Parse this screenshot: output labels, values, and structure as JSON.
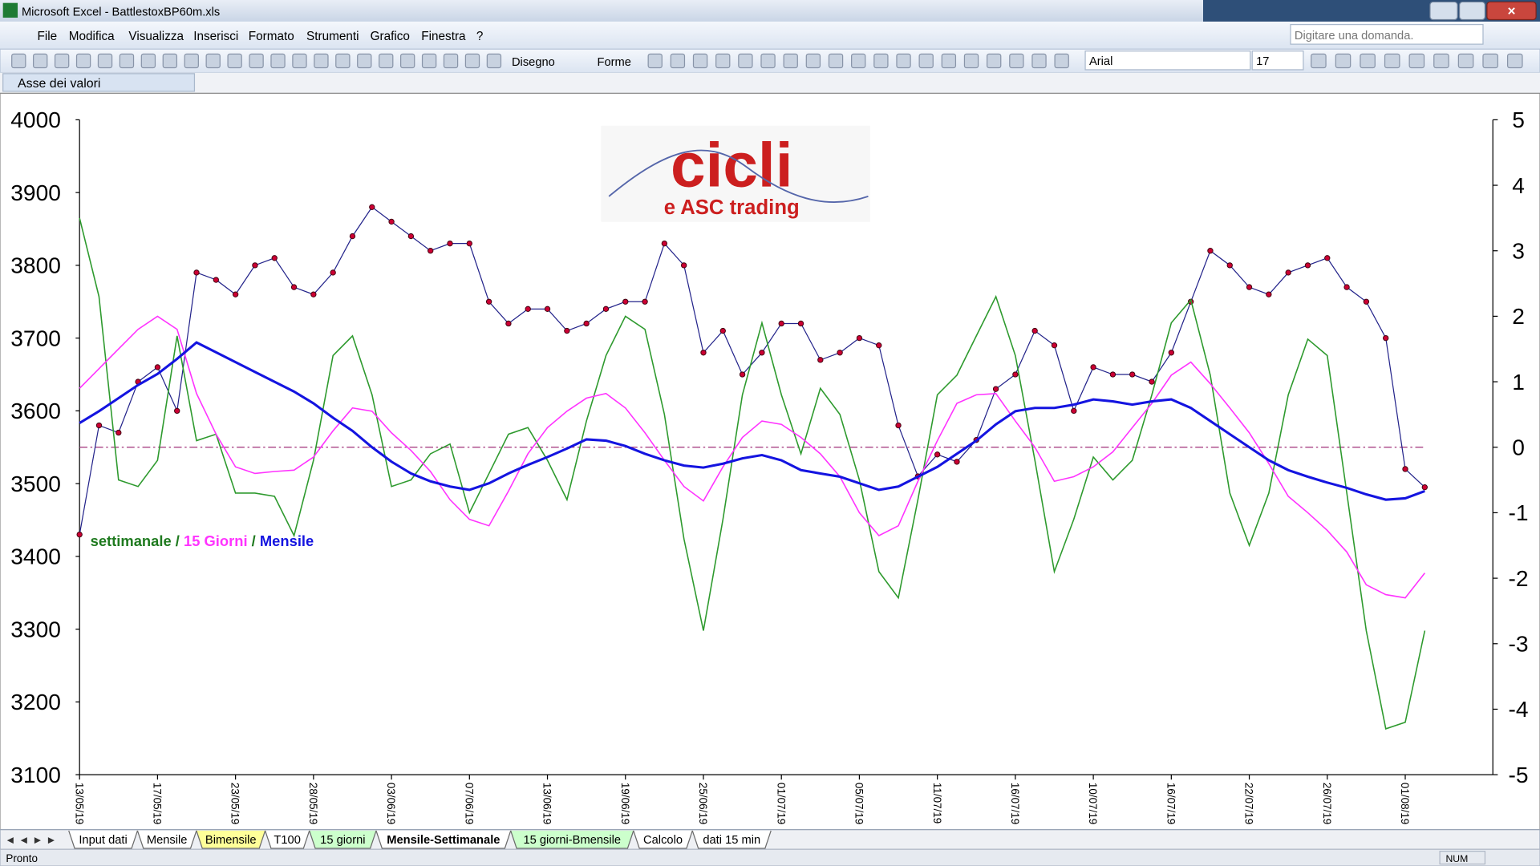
{
  "window": {
    "title": "Microsoft Excel - BattlestoxBP60m.xls"
  },
  "menu": [
    "File",
    "Modifica",
    "Visualizza",
    "Inserisci",
    "Formato",
    "Strumenti",
    "Grafico",
    "Finestra",
    "?"
  ],
  "help_box": "Digitare una domanda.",
  "toolbar": {
    "draw": "Disegno",
    "shapes": "Forme",
    "font": "Arial",
    "size": "17"
  },
  "name_box": "Asse dei valori",
  "chart_data": {
    "type": "line",
    "logo": {
      "line1": "cicli",
      "line2": "e ASC trading"
    },
    "legend_separator": " / ",
    "categories": [
      "13/05/19",
      null,
      null,
      null,
      "17/05/19",
      null,
      null,
      null,
      "23/05/19",
      null,
      null,
      null,
      "28/05/19",
      null,
      null,
      null,
      "03/06/19",
      null,
      null,
      null,
      "07/06/19",
      null,
      null,
      null,
      "13/06/19",
      null,
      null,
      null,
      "19/06/19",
      null,
      null,
      null,
      "25/06/19",
      null,
      null,
      null,
      "01/07/19",
      null,
      null,
      null,
      "05/07/19",
      null,
      null,
      null,
      "11/07/19",
      null,
      null,
      null,
      "16/07/19",
      null,
      null,
      null,
      "10/07/19",
      null,
      null,
      null,
      "16/07/19",
      null,
      null,
      null,
      "22/07/19",
      null,
      null,
      null,
      "26/07/19",
      null,
      null,
      null,
      "01/08/19",
      null
    ],
    "ylim": [
      3100,
      4000
    ],
    "yticks": [
      3100,
      3200,
      3300,
      3400,
      3500,
      3600,
      3700,
      3800,
      3900,
      4000
    ],
    "y2lim": [
      -5,
      5
    ],
    "y2ticks": [
      -5,
      -4,
      -3,
      -2,
      -1,
      0,
      1,
      2,
      3,
      4,
      5
    ],
    "hline": {
      "axis": "y2",
      "value": 0,
      "color": "#a0307a"
    },
    "series": [
      {
        "axis": "y",
        "color": "#23238a",
        "marker_color": "#cc0033",
        "values": [
          3430,
          3580,
          3570,
          3640,
          3660,
          3600,
          3790,
          3780,
          3760,
          3800,
          3810,
          3770,
          3760,
          3790,
          3840,
          3880,
          3860,
          3840,
          3820,
          3830,
          3830,
          3750,
          3720,
          3740,
          3740,
          3710,
          3720,
          3740,
          3750,
          3750,
          3830,
          3800,
          3680,
          3710,
          3650,
          3680,
          3720,
          3720,
          3670,
          3680,
          3700,
          3690,
          3580,
          3510,
          3540,
          3530,
          3560,
          3630,
          3650,
          3710,
          3690,
          3600,
          3660,
          3650,
          3650,
          3640,
          3680,
          3750,
          3820,
          3800,
          3770,
          3760,
          3790,
          3800,
          3810,
          3770,
          3750,
          3700,
          3520,
          3495
        ]
      },
      {
        "name": "settimanale",
        "axis": "y2",
        "color": "#2e9a2e",
        "legend_color": "#1f7a1f",
        "values": [
          3.5,
          2.3,
          -0.5,
          -0.6,
          -0.2,
          1.7,
          0.1,
          0.2,
          -0.7,
          -0.7,
          -0.75,
          -1.35,
          -0.2,
          1.4,
          1.7,
          0.8,
          -0.6,
          -0.5,
          -0.1,
          0.05,
          -1.0,
          -0.4,
          0.2,
          0.3,
          -0.2,
          -0.8,
          0.4,
          1.4,
          2.0,
          1.8,
          0.5,
          -1.4,
          -2.8,
          -1.1,
          0.8,
          1.9,
          0.8,
          -0.1,
          0.9,
          0.5,
          -0.5,
          -1.9,
          -2.3,
          -0.8,
          0.8,
          1.1,
          1.7,
          2.3,
          1.4,
          -0.2,
          -1.9,
          -1.1,
          -0.15,
          -0.5,
          -0.2,
          0.8,
          1.9,
          2.25,
          1.1,
          -0.7,
          -1.5,
          -0.7,
          0.8,
          1.65,
          1.4,
          -0.7,
          -2.8,
          -4.3,
          -4.2,
          -2.8
        ]
      },
      {
        "name": "15 Giorni",
        "axis": "y2",
        "color": "#ff33ff",
        "legend_color": "#ff33ff",
        "values": [
          0.9,
          1.2,
          1.5,
          1.8,
          2.0,
          1.8,
          0.82,
          0.2,
          -0.3,
          -0.4,
          -0.37,
          -0.35,
          -0.15,
          0.25,
          0.6,
          0.55,
          0.22,
          -0.05,
          -0.37,
          -0.8,
          -1.1,
          -1.2,
          -0.67,
          -0.1,
          0.3,
          0.55,
          0.75,
          0.82,
          0.6,
          0.22,
          -0.2,
          -0.6,
          -0.82,
          -0.3,
          0.15,
          0.4,
          0.35,
          0.15,
          -0.1,
          -0.45,
          -1.0,
          -1.35,
          -1.2,
          -0.52,
          0.1,
          0.67,
          0.8,
          0.82,
          0.4,
          0,
          -0.52,
          -0.45,
          -0.3,
          -0.07,
          0.3,
          0.67,
          1.1,
          1.3,
          0.97,
          0.6,
          0.22,
          -0.25,
          -0.75,
          -1.0,
          -1.27,
          -1.6,
          -2.1,
          -2.25,
          -2.3,
          -1.92
        ]
      },
      {
        "name": "Mensile",
        "axis": "y2",
        "color": "#1414e0",
        "legend_color": "#1414e0",
        "values": [
          0.37,
          0.55,
          0.75,
          0.95,
          1.12,
          1.35,
          1.6,
          1.45,
          1.3,
          1.15,
          1.0,
          0.85,
          0.67,
          0.45,
          0.25,
          0.0,
          -0.22,
          -0.4,
          -0.52,
          -0.6,
          -0.65,
          -0.55,
          -0.4,
          -0.27,
          -0.15,
          -0.02,
          0.12,
          0.1,
          0.02,
          -0.1,
          -0.2,
          -0.28,
          -0.31,
          -0.25,
          -0.17,
          -0.12,
          -0.2,
          -0.35,
          -0.4,
          -0.45,
          -0.55,
          -0.65,
          -0.6,
          -0.45,
          -0.3,
          -0.1,
          0.1,
          0.35,
          0.55,
          0.6,
          0.6,
          0.65,
          0.73,
          0.7,
          0.65,
          0.7,
          0.73,
          0.6,
          0.4,
          0.2,
          0.0,
          -0.2,
          -0.35,
          -0.45,
          -0.54,
          -0.62,
          -0.72,
          -0.8,
          -0.78,
          -0.67
        ]
      }
    ]
  },
  "sheet_tabs": [
    {
      "label": "Input dati",
      "color": "#ffffff"
    },
    {
      "label": "Mensile",
      "color": "#ffffff"
    },
    {
      "label": "Bimensile",
      "color": "#ffff99"
    },
    {
      "label": "T100",
      "color": "#ffffff"
    },
    {
      "label": "15 giorni",
      "color": "#ccffcc"
    },
    {
      "label": "Mensile-Settimanale",
      "color": "#ffffff",
      "active": true
    },
    {
      "label": "15 giorni-Bmensile",
      "color": "#ccffcc"
    },
    {
      "label": "Calcolo",
      "color": "#ffffff"
    },
    {
      "label": "dati 15 min",
      "color": "#ffffff"
    }
  ],
  "status": {
    "left": "Pronto",
    "num": "NUM"
  }
}
